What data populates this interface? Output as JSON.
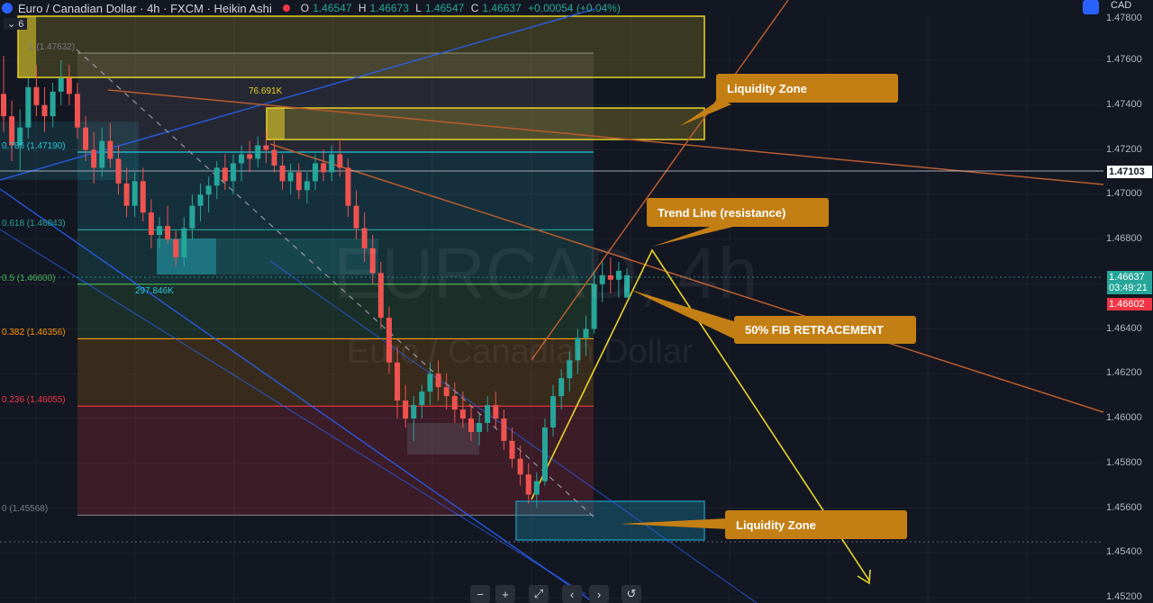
{
  "header": {
    "title": "Euro / Canadian Dollar · 4h · FXCM · Heikin Ashi",
    "ohlc": [
      {
        "k": "O",
        "v": "1.46547"
      },
      {
        "k": "H",
        "v": "1.46673"
      },
      {
        "k": "L",
        "v": "1.46547"
      },
      {
        "k": "C",
        "v": "1.46637"
      }
    ],
    "change": "+0.00054 (+0.04%)",
    "currency": "CAD",
    "collapse_count": "6"
  },
  "watermark": {
    "symbol": "EURCAD, 4h",
    "name": "Euro / Canadian Dollar"
  },
  "colors": {
    "background": "#131722",
    "up": "#26a69a",
    "down": "#ef5350",
    "callout": "#c47f14",
    "zone": "#e8d22a",
    "liquidity": "#1e88a8"
  },
  "price_axis": {
    "labels": [
      "1.47600",
      "1.47400",
      "1.47200",
      "1.47000",
      "1.46800",
      "1.46400",
      "1.46200",
      "1.46000",
      "1.45800",
      "1.45600",
      "1.45400",
      "1.45200"
    ],
    "crosshair_price": "1.47103",
    "last_price": "1.46637",
    "countdown": "03:49:21",
    "prev_price": "1.46602",
    "top_partial": "1.47800"
  },
  "fib": [
    {
      "ratio": "1",
      "label": "1 (1.47632)",
      "price": 1.47632,
      "color": "#787b86"
    },
    {
      "ratio": "0.786",
      "label": "0.786 (1.47190)",
      "price": 1.4719,
      "color": "#26c6da"
    },
    {
      "ratio": "0.618",
      "label": "0.618 (1.46843)",
      "price": 1.46843,
      "color": "#26a69a"
    },
    {
      "ratio": "0.5",
      "label": "0.5 (1.46600)",
      "price": 1.466,
      "color": "#4caf50"
    },
    {
      "ratio": "0.382",
      "label": "0.382 (1.46356)",
      "price": 1.46356,
      "color": "#ff9800"
    },
    {
      "ratio": "0.236",
      "label": "0.236 (1.46055)",
      "price": 1.46055,
      "color": "#f23645"
    },
    {
      "ratio": "0",
      "label": "0 (1.45568)",
      "price": 1.45568,
      "color": "#787b86"
    }
  ],
  "volume_labels": {
    "upper": "76.691K",
    "lower": "297.846K"
  },
  "callouts": {
    "liquidity_top": "Liquidity Zone",
    "trend_line": "Trend Line (resistance)",
    "fib_retracement": "50% FIB RETRACEMENT",
    "liquidity_bottom": "Liquidity Zone"
  },
  "controls": [
    "−",
    "+",
    "⤢",
    "‹",
    "›",
    "↺"
  ],
  "chart_data": {
    "type": "candlestick",
    "title": "Euro / Canadian Dollar · 4h · FXCM · Heikin Ashi",
    "ylim": [
      1.452,
      1.478
    ],
    "candles": [
      [
        1.4745,
        1.4762,
        1.4728,
        1.4735
      ],
      [
        1.4735,
        1.4742,
        1.4715,
        1.4722
      ],
      [
        1.4722,
        1.4738,
        1.471,
        1.473
      ],
      [
        1.473,
        1.4752,
        1.4725,
        1.4748
      ],
      [
        1.4748,
        1.4758,
        1.4735,
        1.474
      ],
      [
        1.474,
        1.4748,
        1.4728,
        1.4735
      ],
      [
        1.4735,
        1.475,
        1.473,
        1.4746
      ],
      [
        1.4746,
        1.476,
        1.474,
        1.4752
      ],
      [
        1.4752,
        1.4758,
        1.474,
        1.4745
      ],
      [
        1.4745,
        1.475,
        1.4725,
        1.473
      ],
      [
        1.473,
        1.4735,
        1.4715,
        1.472
      ],
      [
        1.472,
        1.4728,
        1.4705,
        1.4712
      ],
      [
        1.4712,
        1.473,
        1.4708,
        1.4724
      ],
      [
        1.4724,
        1.4732,
        1.4712,
        1.4716
      ],
      [
        1.4716,
        1.4722,
        1.47,
        1.4705
      ],
      [
        1.4705,
        1.4712,
        1.469,
        1.4695
      ],
      [
        1.4695,
        1.471,
        1.469,
        1.4706
      ],
      [
        1.4706,
        1.4712,
        1.4688,
        1.4692
      ],
      [
        1.4692,
        1.4698,
        1.4676,
        1.4682
      ],
      [
        1.4682,
        1.469,
        1.4676,
        1.4686
      ],
      [
        1.4686,
        1.4695,
        1.4678,
        1.468
      ],
      [
        1.468,
        1.4684,
        1.4668,
        1.4672
      ],
      [
        1.4672,
        1.469,
        1.4668,
        1.4685
      ],
      [
        1.4685,
        1.47,
        1.468,
        1.4695
      ],
      [
        1.4695,
        1.4705,
        1.4688,
        1.47
      ],
      [
        1.47,
        1.4708,
        1.4692,
        1.4704
      ],
      [
        1.4704,
        1.4715,
        1.4698,
        1.4712
      ],
      [
        1.4712,
        1.4718,
        1.4702,
        1.4706
      ],
      [
        1.4706,
        1.4718,
        1.47,
        1.4714
      ],
      [
        1.4714,
        1.4722,
        1.4706,
        1.4718
      ],
      [
        1.4718,
        1.4724,
        1.471,
        1.4716
      ],
      [
        1.4716,
        1.4726,
        1.4712,
        1.4722
      ],
      [
        1.4722,
        1.4728,
        1.4714,
        1.472
      ],
      [
        1.472,
        1.4724,
        1.471,
        1.4713
      ],
      [
        1.4713,
        1.4718,
        1.4702,
        1.4706
      ],
      [
        1.4706,
        1.4714,
        1.47,
        1.471
      ],
      [
        1.471,
        1.4714,
        1.4698,
        1.4702
      ],
      [
        1.4702,
        1.471,
        1.4696,
        1.4706
      ],
      [
        1.4706,
        1.4718,
        1.4702,
        1.4714
      ],
      [
        1.4714,
        1.472,
        1.4706,
        1.471
      ],
      [
        1.471,
        1.4722,
        1.4706,
        1.4718
      ],
      [
        1.4718,
        1.4724,
        1.4708,
        1.4712
      ],
      [
        1.4712,
        1.4716,
        1.469,
        1.4695
      ],
      [
        1.4695,
        1.4702,
        1.468,
        1.4685
      ],
      [
        1.4685,
        1.4692,
        1.467,
        1.4676
      ],
      [
        1.4676,
        1.4682,
        1.466,
        1.4665
      ],
      [
        1.4665,
        1.467,
        1.464,
        1.4645
      ],
      [
        1.4645,
        1.465,
        1.462,
        1.4625
      ],
      [
        1.4625,
        1.4632,
        1.46,
        1.4608
      ],
      [
        1.4608,
        1.4615,
        1.4596,
        1.46
      ],
      [
        1.46,
        1.461,
        1.459,
        1.4606
      ],
      [
        1.4606,
        1.4615,
        1.46,
        1.4612
      ],
      [
        1.4612,
        1.4625,
        1.4606,
        1.462
      ],
      [
        1.462,
        1.4626,
        1.4608,
        1.4614
      ],
      [
        1.4614,
        1.462,
        1.4604,
        1.461
      ],
      [
        1.461,
        1.4616,
        1.4598,
        1.4604
      ],
      [
        1.4604,
        1.4612,
        1.4596,
        1.46
      ],
      [
        1.46,
        1.4606,
        1.459,
        1.4594
      ],
      [
        1.4594,
        1.4602,
        1.4588,
        1.4598
      ],
      [
        1.4598,
        1.461,
        1.4594,
        1.4606
      ],
      [
        1.4606,
        1.4612,
        1.4596,
        1.46
      ],
      [
        1.46,
        1.4604,
        1.4586,
        1.459
      ],
      [
        1.459,
        1.4596,
        1.4578,
        1.4582
      ],
      [
        1.4582,
        1.4588,
        1.457,
        1.4575
      ],
      [
        1.4575,
        1.458,
        1.4562,
        1.4566
      ],
      [
        1.4566,
        1.4576,
        1.456,
        1.4572
      ],
      [
        1.4572,
        1.46,
        1.457,
        1.4596
      ],
      [
        1.4596,
        1.4615,
        1.4592,
        1.461
      ],
      [
        1.461,
        1.4622,
        1.4604,
        1.4618
      ],
      [
        1.4618,
        1.463,
        1.4612,
        1.4626
      ],
      [
        1.4626,
        1.464,
        1.462,
        1.4636
      ],
      [
        1.4636,
        1.4646,
        1.4628,
        1.464
      ],
      [
        1.464,
        1.4666,
        1.4638,
        1.466
      ],
      [
        1.466,
        1.467,
        1.4652,
        1.4664
      ],
      [
        1.4664,
        1.4672,
        1.4656,
        1.4662
      ],
      [
        1.4662,
        1.467,
        1.4654,
        1.4666
      ],
      [
        1.4654,
        1.4667,
        1.4654,
        1.4664
      ]
    ]
  }
}
